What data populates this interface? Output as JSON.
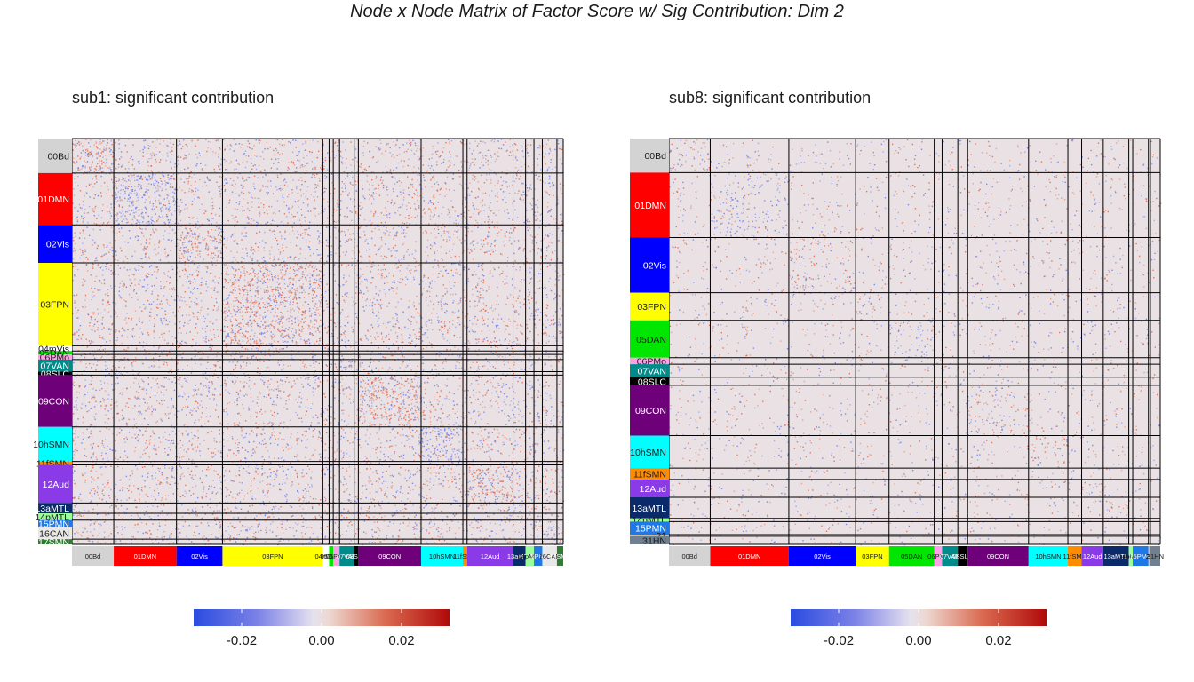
{
  "title": "Node x Node Matrix of Factor Score w/ Sig Contribution: Dim 2",
  "colors": {
    "background_cell": "#E9E1E4",
    "negative": "#3B4CC0",
    "positive": "#B40426",
    "grid_line": "#000000"
  },
  "chart_data": [
    {
      "type": "heatmap",
      "title": "sub1: significant contribution",
      "communities": [
        {
          "label": "00Bd",
          "color": "#D3D3D3",
          "size": 20
        },
        {
          "label": "01DMN",
          "color": "#FF0000",
          "size": 30
        },
        {
          "label": "02Vis",
          "color": "#0000FF",
          "size": 22
        },
        {
          "label": "03FPN",
          "color": "#FFFF00",
          "size": 48
        },
        {
          "label": "04mVis",
          "color": "#FFFFFF",
          "size": 3
        },
        {
          "label": "05DAN",
          "color": "#00E600",
          "size": 2
        },
        {
          "label": "06PMo",
          "color": "#FFA0E6",
          "size": 3
        },
        {
          "label": "07VAN",
          "color": "#008B8B",
          "size": 7
        },
        {
          "label": "08SLC",
          "color": "#000000",
          "size": 2
        },
        {
          "label": "09CON",
          "color": "#6E007A",
          "size": 30
        },
        {
          "label": "10hSMN",
          "color": "#00FFFF",
          "size": 20
        },
        {
          "label": "11fSMN",
          "color": "#FF8C00",
          "size": 2
        },
        {
          "label": "12Aud",
          "color": "#8A3AE6",
          "size": 22
        },
        {
          "label": "13aMTL",
          "color": "#0A2A6A",
          "size": 6
        },
        {
          "label": "14pMTL",
          "color": "#9AFF9A",
          "size": 4
        },
        {
          "label": "15PMN",
          "color": "#1E78E6",
          "size": 4
        },
        {
          "label": "16CAN",
          "color": "#E8E8E8",
          "size": 7
        },
        {
          "label": "17SMN",
          "color": "#2E7D32",
          "size": 3
        }
      ],
      "colorbar": {
        "ticks": [
          -0.02,
          0.0,
          0.02
        ],
        "tick_labels": [
          "-0.02",
          "0.00",
          "0.02"
        ],
        "range": [
          -0.032,
          0.032
        ]
      }
    },
    {
      "type": "heatmap",
      "title": "sub8: significant contribution",
      "communities": [
        {
          "label": "00Bd",
          "color": "#D3D3D3",
          "size": 21
        },
        {
          "label": "01DMN",
          "color": "#FF0000",
          "size": 40
        },
        {
          "label": "02Vis",
          "color": "#0000FF",
          "size": 34
        },
        {
          "label": "03FPN",
          "color": "#FFFF00",
          "size": 17
        },
        {
          "label": "05DAN",
          "color": "#00E600",
          "size": 23
        },
        {
          "label": "06PMo",
          "color": "#FFA0E6",
          "size": 4
        },
        {
          "label": "07VAN",
          "color": "#008B8B",
          "size": 8
        },
        {
          "label": "08SLC",
          "color": "#000000",
          "size": 5
        },
        {
          "label": "09CON",
          "color": "#6E007A",
          "size": 31
        },
        {
          "label": "10hSMN",
          "color": "#00FFFF",
          "size": 20
        },
        {
          "label": "11fSMN",
          "color": "#FF8C00",
          "size": 7
        },
        {
          "label": "12Aud",
          "color": "#8A3AE6",
          "size": 11
        },
        {
          "label": "13aMTL",
          "color": "#0A2A6A",
          "size": 13
        },
        {
          "label": "14pMTL",
          "color": "#9AFF9A",
          "size": 2
        },
        {
          "label": "15PMN",
          "color": "#1E78E6",
          "size": 8
        },
        {
          "label": "21",
          "color": "#C0C0C0",
          "size": 1
        },
        {
          "label": "31HN",
          "color": "#708090",
          "size": 5
        }
      ],
      "colorbar": {
        "ticks": [
          -0.02,
          0.0,
          0.02
        ],
        "tick_labels": [
          "-0.02",
          "0.00",
          "0.02"
        ],
        "range": [
          -0.032,
          0.032
        ]
      }
    }
  ]
}
